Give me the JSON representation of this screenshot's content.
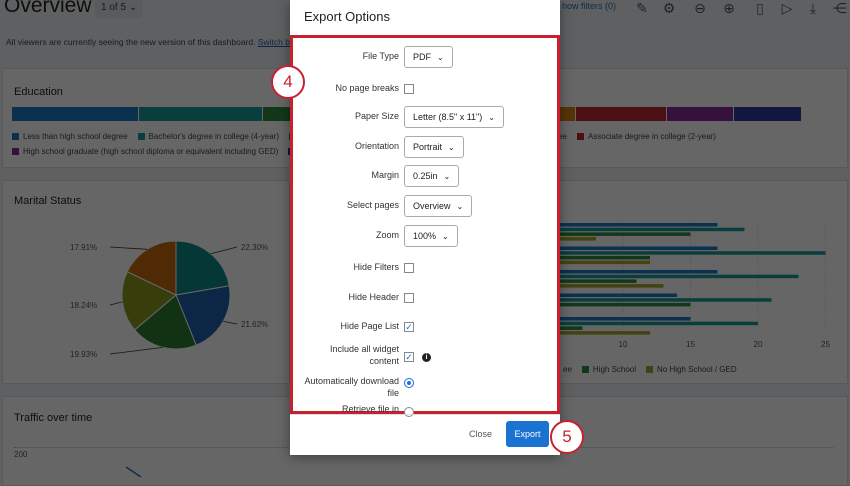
{
  "header": {
    "title": "Overview",
    "page_selector": "1 of 5",
    "filters_link": "how filters (0)",
    "icons": [
      "edit-icon",
      "gear-icon",
      "zoom-out-icon",
      "zoom-in-icon",
      "mobile-icon",
      "play-icon",
      "download-icon",
      "share-icon"
    ]
  },
  "notice": {
    "text": "All viewers are currently seeing the new version of this dashboard.",
    "link": "Switch b"
  },
  "education": {
    "title": "Education",
    "segments": [
      {
        "color": "#1f77c9",
        "share": 0.155
      },
      {
        "color": "#179a9a",
        "share": 0.151
      },
      {
        "color": "#2e8b3e",
        "share": 0.34
      },
      {
        "color": "#d9820f",
        "share": 0.043
      },
      {
        "color": "#c0282e",
        "share": 0.11
      },
      {
        "color": "#8a2a9c",
        "share": 0.082
      },
      {
        "color": "#2a3a9c",
        "share": 0.082
      }
    ],
    "legend_row1": [
      {
        "label": "Less than high school degree",
        "color": "#1f77c9"
      },
      {
        "label": "Bachelor's degree in college (4-year)",
        "color": "#179a9a"
      },
      {
        "label": "P",
        "color": "#2e8b3e"
      }
    ],
    "legend_row1_right": [
      {
        "label": "ee",
        "color": ""
      },
      {
        "label": "Associate degree in college (2-year)",
        "color": "#c0282e"
      }
    ],
    "legend_row2": [
      {
        "label": "High school graduate (high school diploma or equivalent including GED)",
        "color": "#8a2a9c"
      },
      {
        "label": "D",
        "color": "#2a3a9c"
      }
    ]
  },
  "marital": {
    "title": "Marital Status",
    "chart_data": {
      "type": "pie",
      "values": [
        22.3,
        21.62,
        19.93,
        18.24,
        17.91
      ],
      "labels": [
        "22.30%",
        "21.62%",
        "19.93%",
        "18.24%",
        "17.91%"
      ],
      "colors": [
        "#0f8a8a",
        "#1f5fb0",
        "#2e7d32",
        "#8a9a1e",
        "#c76a0a"
      ]
    }
  },
  "bars": {
    "chart_data": {
      "type": "bar",
      "orientation": "horizontal",
      "xlim": [
        0,
        25
      ],
      "ticks": [
        "10",
        "15",
        "20",
        "25"
      ],
      "tick_values": [
        10,
        15,
        20,
        25
      ],
      "series_colors": [
        "#1f77c9",
        "#179a9a",
        "#2e8b3e",
        "#a6a82a"
      ],
      "groups": [
        [
          17,
          19,
          15,
          8
        ],
        [
          17,
          25,
          12,
          12
        ],
        [
          17,
          23,
          11,
          13
        ],
        [
          14,
          21,
          15,
          null
        ],
        [
          15,
          20,
          7,
          12
        ]
      ],
      "legend": [
        {
          "label": "ee",
          "color": ""
        },
        {
          "label": "High School",
          "color": "#2e8b3e"
        },
        {
          "label": "No High School / GED",
          "color": "#a6a82a"
        }
      ]
    }
  },
  "traffic": {
    "title": "Traffic over time",
    "ytick": "200"
  },
  "modal": {
    "title": "Export Options",
    "file_type": {
      "label": "File Type",
      "value": "PDF"
    },
    "no_page_breaks": {
      "label": "No page breaks",
      "checked": false
    },
    "paper_size": {
      "label": "Paper Size",
      "value": "Letter (8.5\" x 11\")"
    },
    "orientation": {
      "label": "Orientation",
      "value": "Portrait"
    },
    "margin": {
      "label": "Margin",
      "value": "0.25in"
    },
    "select_pages": {
      "label": "Select pages",
      "value": "Overview"
    },
    "zoom": {
      "label": "Zoom",
      "value": "100%"
    },
    "hide_filters": {
      "label": "Hide Filters",
      "checked": false
    },
    "hide_header": {
      "label": "Hide Header",
      "checked": false
    },
    "hide_page_list": {
      "label": "Hide Page List",
      "checked": true
    },
    "include_widget": {
      "label1": "Include all widget",
      "label2": "content",
      "checked": true
    },
    "auto_download": {
      "label1": "Automatically download",
      "label2": "file",
      "selected": true
    },
    "retrieve": {
      "label": "Retrieve file in",
      "selected": false
    },
    "close": "Close",
    "export": "Export"
  },
  "steps": [
    "4",
    "5"
  ],
  "chev": "⌄",
  "check": "✓",
  "info": "i"
}
